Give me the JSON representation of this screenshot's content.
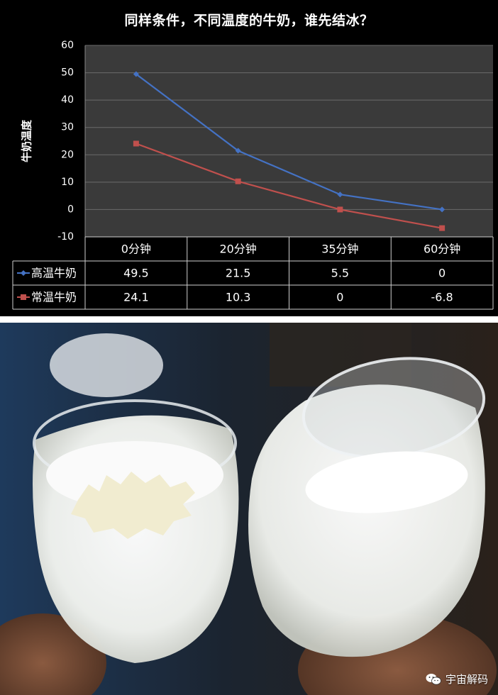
{
  "chart_data": {
    "type": "line",
    "title": "同样条件，不同温度的牛奶，谁先结冰？",
    "ylabel": "牛奶温度",
    "xlabel": "",
    "ylim": [
      -10,
      60
    ],
    "yticks": [
      60,
      50,
      40,
      30,
      20,
      10,
      0,
      -10
    ],
    "categories": [
      "0分钟",
      "20分钟",
      "35分钟",
      "60分钟"
    ],
    "grid": true,
    "legend": "table-left",
    "series": [
      {
        "name": "高温牛奶",
        "values": [
          49.5,
          21.5,
          5.5,
          0
        ],
        "labels": [
          "49.5",
          "21.5",
          "5.5",
          "0"
        ],
        "color": "#4472C4",
        "marker": "diamond"
      },
      {
        "name": "常温牛奶",
        "values": [
          24.1,
          10.3,
          0,
          -6.8
        ],
        "labels": [
          "24.1",
          "10.3",
          "0",
          "-6.8"
        ],
        "color": "#C0504D",
        "marker": "square"
      }
    ]
  },
  "watermark": {
    "text": "宇宙解码",
    "icon": "wechat-icon"
  },
  "colors": {
    "plot_bg": "#3a3a3a",
    "panel_bg": "#000000",
    "grid": "#6b6b6b"
  }
}
